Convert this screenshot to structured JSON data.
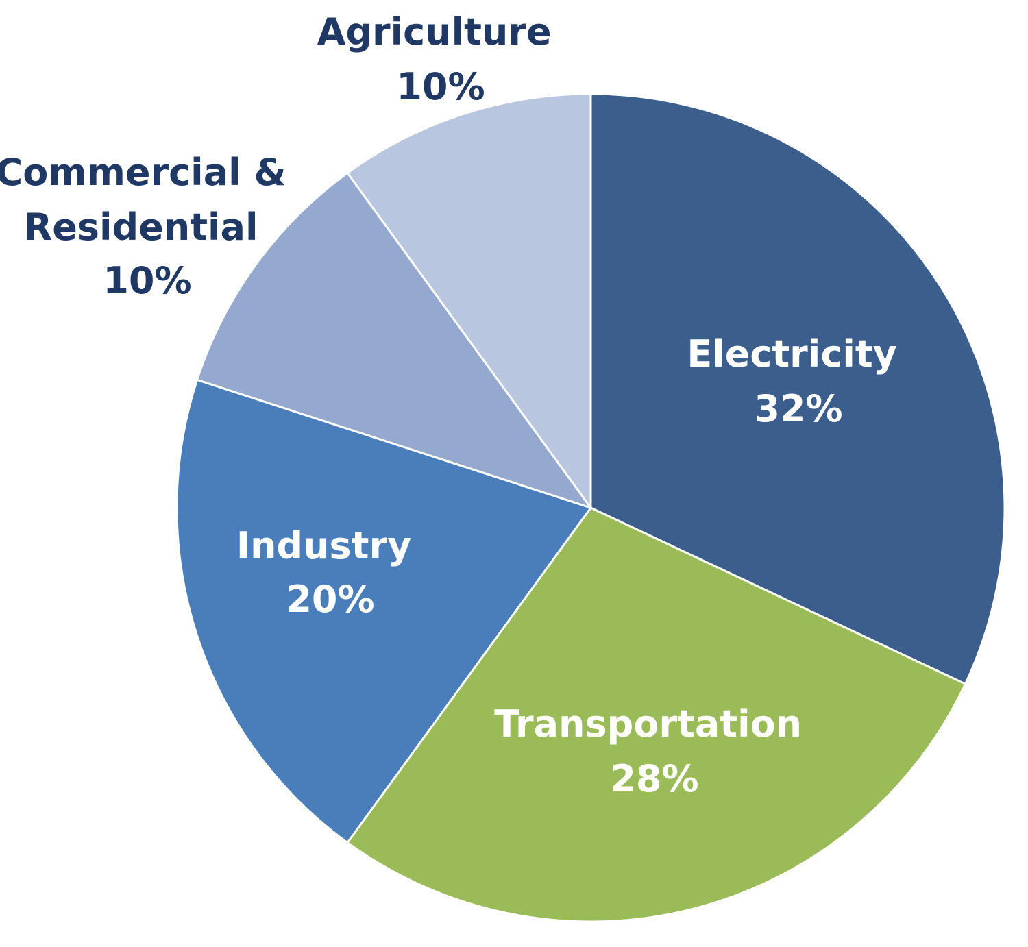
{
  "chart_data": {
    "type": "pie",
    "title": "",
    "slices": [
      {
        "label": "Electricity",
        "value": 32,
        "value_label": "32%",
        "color": "#3b5e8c"
      },
      {
        "label": "Transportation",
        "value": 28,
        "value_label": "28%",
        "color": "#9bbb59"
      },
      {
        "label": "Industry",
        "value": 20,
        "value_label": "20%",
        "color": "#4a7ebb"
      },
      {
        "label": "Commercial & Residential",
        "value": 10,
        "value_label": "10%",
        "color": "#95a9ce"
      },
      {
        "label": "Agriculture",
        "value": 10,
        "value_label": "10%",
        "color": "#b9c6e0"
      }
    ],
    "start_angle": "12 o'clock",
    "direction": "clockwise",
    "labels": {
      "text_color_inside": "#ffffff",
      "text_color_outside": "#1f3864"
    }
  }
}
